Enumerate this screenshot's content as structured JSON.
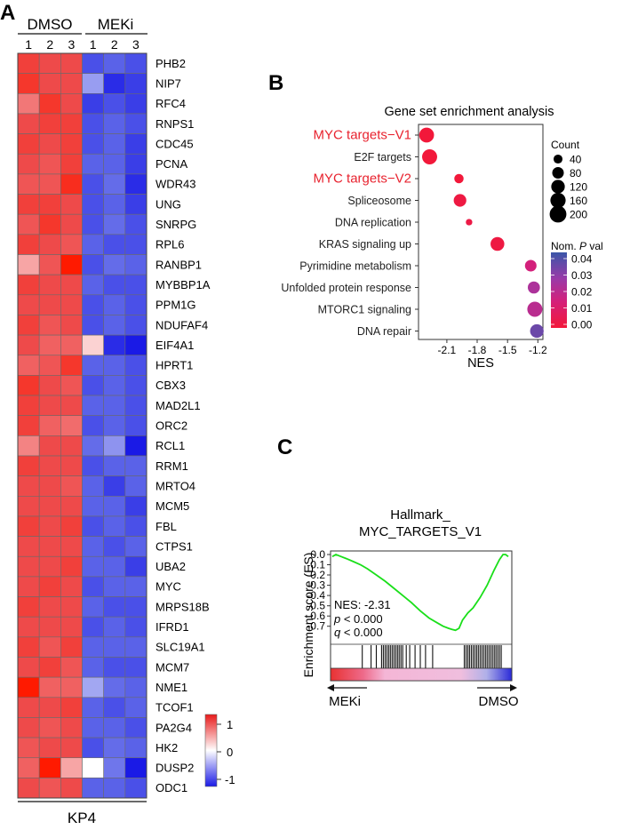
{
  "figure": {
    "panel_labels": [
      "A",
      "B",
      "C"
    ]
  },
  "chart_data": [
    {
      "id": "heatmap",
      "type": "heatmap",
      "group_labels": [
        "DMSO",
        "MEKi"
      ],
      "column_labels": [
        "1",
        "2",
        "3",
        "1",
        "2",
        "3"
      ],
      "caption": "KP4",
      "rows": [
        "PHB2",
        "NIP7",
        "RFC4",
        "RNPS1",
        "CDC45",
        "PCNA",
        "WDR43",
        "UNG",
        "SNRPG",
        "RPL6",
        "RANBP1",
        "MYBBP1A",
        "PPM1G",
        "NDUFAF4",
        "EIF4A1",
        "HPRT1",
        "CBX3",
        "MAD2L1",
        "ORC2",
        "RCL1",
        "RRM1",
        "MRTO4",
        "MCM5",
        "FBL",
        "CTPS1",
        "UBA2",
        "MYC",
        "MRPS18B",
        "IFRD1",
        "SLC19A1",
        "MCM7",
        "NME1",
        "TCOF1",
        "PA2G4",
        "HK2",
        "DUSP2",
        "ODC1"
      ],
      "values": [
        [
          0.85,
          0.8,
          0.8,
          -0.85,
          -0.8,
          -0.85
        ],
        [
          0.9,
          0.8,
          0.8,
          -0.5,
          -0.95,
          -0.9
        ],
        [
          0.6,
          0.9,
          0.8,
          -0.9,
          -0.85,
          -0.9
        ],
        [
          0.8,
          0.85,
          0.85,
          -0.85,
          -0.8,
          -0.85
        ],
        [
          0.85,
          0.8,
          0.85,
          -0.85,
          -0.8,
          -0.9
        ],
        [
          0.8,
          0.75,
          0.85,
          -0.8,
          -0.8,
          -0.9
        ],
        [
          0.75,
          0.75,
          0.95,
          -0.85,
          -0.75,
          -0.95
        ],
        [
          0.85,
          0.85,
          0.8,
          -0.85,
          -0.8,
          -0.9
        ],
        [
          0.75,
          0.9,
          0.8,
          -0.85,
          -0.75,
          -0.85
        ],
        [
          0.85,
          0.8,
          0.75,
          -0.8,
          -0.85,
          -0.85
        ],
        [
          0.4,
          0.75,
          1.05,
          -0.85,
          -0.75,
          -0.8
        ],
        [
          0.85,
          0.8,
          0.8,
          -0.8,
          -0.85,
          -0.85
        ],
        [
          0.8,
          0.8,
          0.8,
          -0.85,
          -0.8,
          -0.85
        ],
        [
          0.85,
          0.75,
          0.8,
          -0.85,
          -0.8,
          -0.85
        ],
        [
          0.8,
          0.7,
          0.7,
          0.2,
          -0.95,
          -1.0
        ],
        [
          0.7,
          0.75,
          0.9,
          -0.8,
          -0.8,
          -0.85
        ],
        [
          0.9,
          0.8,
          0.75,
          -0.85,
          -0.8,
          -0.85
        ],
        [
          0.85,
          0.8,
          0.8,
          -0.8,
          -0.8,
          -0.85
        ],
        [
          0.85,
          0.7,
          0.65,
          -0.85,
          -0.8,
          -0.85
        ],
        [
          0.55,
          0.8,
          0.8,
          -0.75,
          -0.55,
          -1.0
        ],
        [
          0.85,
          0.8,
          0.8,
          -0.85,
          -0.8,
          -0.8
        ],
        [
          0.8,
          0.8,
          0.75,
          -0.8,
          -0.9,
          -0.8
        ],
        [
          0.8,
          0.8,
          0.8,
          -0.8,
          -0.8,
          -0.9
        ],
        [
          0.85,
          0.8,
          0.85,
          -0.85,
          -0.8,
          -0.85
        ],
        [
          0.8,
          0.8,
          0.8,
          -0.8,
          -0.85,
          -0.8
        ],
        [
          0.8,
          0.8,
          0.85,
          -0.8,
          -0.8,
          -0.9
        ],
        [
          0.8,
          0.85,
          0.8,
          -0.85,
          -0.8,
          -0.8
        ],
        [
          0.85,
          0.8,
          0.8,
          -0.8,
          -0.85,
          -0.85
        ],
        [
          0.8,
          0.8,
          0.8,
          -0.85,
          -0.8,
          -0.85
        ],
        [
          0.85,
          0.75,
          0.85,
          -0.8,
          -0.8,
          -0.8
        ],
        [
          0.8,
          0.85,
          0.75,
          -0.8,
          -0.85,
          -0.85
        ],
        [
          1.05,
          0.7,
          0.7,
          -0.45,
          -0.75,
          -0.8
        ],
        [
          0.8,
          0.8,
          0.85,
          -0.8,
          -0.85,
          -0.8
        ],
        [
          0.8,
          0.75,
          0.8,
          -0.8,
          -0.8,
          -0.85
        ],
        [
          0.75,
          0.8,
          0.8,
          -0.85,
          -0.75,
          -0.8
        ],
        [
          0.7,
          1.05,
          0.4,
          0.0,
          -0.7,
          -1.0
        ],
        [
          0.8,
          0.75,
          0.8,
          -0.8,
          -0.8,
          -0.85
        ]
      ],
      "colorbar": {
        "ticks": [
          "1",
          "0",
          "-1"
        ],
        "range": [
          -1,
          1
        ]
      }
    },
    {
      "id": "gsea_dotplot",
      "type": "scatter",
      "title": "Gene set enrichment analysis",
      "xlabel": "NES",
      "x_ticks": [
        "-2.1",
        "-1.8",
        "-1.5",
        "-1.2"
      ],
      "x_tick_values": [
        -2.1,
        -1.8,
        -1.5,
        -1.2
      ],
      "xlim": [
        -2.38,
        -1.15
      ],
      "categories": [
        "MYC targets−V1",
        "E2F targets",
        "MYC targets−V2",
        "Spliceosome",
        "DNA replication",
        "KRAS signaling up",
        "Pyrimidine metabolism",
        "Unfolded protein response",
        "MTORC1 signaling",
        "DNA repair"
      ],
      "highlight_color": "#e8232f",
      "highlighted": [
        true,
        false,
        true,
        false,
        false,
        false,
        false,
        false,
        false,
        false
      ],
      "nes": [
        -2.3,
        -2.27,
        -1.98,
        -1.97,
        -1.88,
        -1.6,
        -1.27,
        -1.24,
        -1.23,
        -1.21
      ],
      "count": [
        150,
        155,
        45,
        100,
        15,
        125,
        80,
        90,
        155,
        120
      ],
      "pval": [
        0.0,
        0.0,
        0.0,
        0.002,
        0.003,
        0.002,
        0.016,
        0.025,
        0.022,
        0.037
      ],
      "size_legend": {
        "title": "Count",
        "values": [
          40,
          80,
          120,
          160,
          200
        ]
      },
      "color_legend": {
        "title_prefix": "Nom. ",
        "title_italic": "P",
        "title_suffix": " val",
        "ticks": [
          "0.04",
          "0.03",
          "0.02",
          "0.01",
          "0.00"
        ],
        "range": [
          0,
          0.045
        ]
      }
    },
    {
      "id": "gsea_enrichment",
      "type": "line",
      "title_lines": [
        "Hallmark_",
        "MYC_TARGETS_V1"
      ],
      "ylabel": "Enrichment score (ES)",
      "y_ticks": [
        "0.0",
        "-0.1",
        "-0.2",
        "-0.3",
        "-0.4",
        "-0.5",
        "-0.6",
        "-0.7"
      ],
      "y_tick_values": [
        0.0,
        -0.1,
        -0.2,
        -0.3,
        -0.4,
        -0.5,
        -0.6,
        -0.7
      ],
      "ylim": [
        -0.75,
        0.03
      ],
      "series": [
        {
          "name": "Running ES",
          "color": "#1adf1a",
          "x": [
            0.0,
            0.02,
            0.05,
            0.08,
            0.12,
            0.16,
            0.2,
            0.25,
            0.3,
            0.35,
            0.4,
            0.45,
            0.5,
            0.55,
            0.6,
            0.63,
            0.66,
            0.68,
            0.7,
            0.72,
            0.74,
            0.77,
            0.8,
            0.84,
            0.88,
            0.92,
            0.95,
            0.97,
            0.985,
            1.0
          ],
          "values": [
            -0.02,
            0.0,
            -0.02,
            -0.04,
            -0.07,
            -0.1,
            -0.14,
            -0.2,
            -0.26,
            -0.33,
            -0.4,
            -0.47,
            -0.55,
            -0.62,
            -0.67,
            -0.7,
            -0.72,
            -0.73,
            -0.74,
            -0.72,
            -0.64,
            -0.57,
            -0.52,
            -0.42,
            -0.3,
            -0.15,
            -0.05,
            0.0,
            0.0,
            -0.02
          ]
        }
      ],
      "stats": {
        "nes_label": "NES: -2.31",
        "p_symbol": "p",
        "p_text": " < 0.000",
        "q_symbol": "q",
        "q_text": " < 0.000"
      },
      "hits_rank": [
        0.17,
        0.22,
        0.25,
        0.28,
        0.29,
        0.3,
        0.31,
        0.32,
        0.33,
        0.34,
        0.35,
        0.36,
        0.37,
        0.38,
        0.39,
        0.4,
        0.42,
        0.44,
        0.47,
        0.5,
        0.53,
        0.57,
        0.75,
        0.76,
        0.77,
        0.78,
        0.79,
        0.8,
        0.81,
        0.82,
        0.83,
        0.84,
        0.85,
        0.86,
        0.87,
        0.88,
        0.89,
        0.9,
        0.91,
        0.92,
        0.93,
        0.94,
        0.95,
        0.96
      ],
      "left_label": "MEKi",
      "right_label": "DMSO"
    }
  ]
}
